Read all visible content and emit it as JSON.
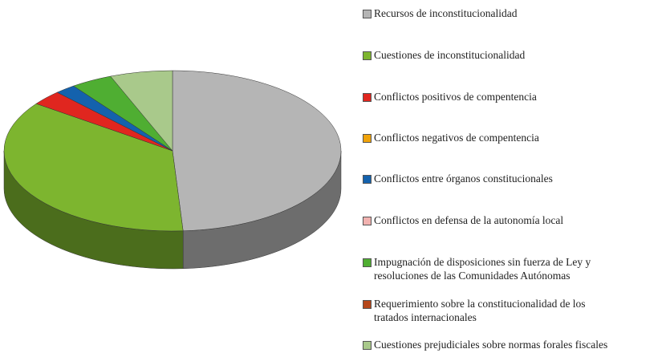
{
  "chart_data": {
    "type": "pie",
    "series": [
      {
        "name": "Recursos de inconstitucionalidad",
        "color": "#b5b5b5",
        "values": [
          49
        ]
      },
      {
        "name": "Cuestiones de inconstitucionalidad",
        "color": "#7db52f",
        "values": [
          36
        ]
      },
      {
        "name": "Conflictos positivos de compentencia",
        "color": "#e0261f",
        "values": [
          3
        ]
      },
      {
        "name": "Conflictos negativos de compentencia",
        "color": "#f0a30a",
        "values": [
          0
        ]
      },
      {
        "name": "Conflictos entre órganos constitucionales",
        "color": "#1462ad",
        "values": [
          2
        ]
      },
      {
        "name": "Conflictos en defensa de la autonomía local",
        "color": "#f2b2b0",
        "values": [
          0
        ]
      },
      {
        "name": "Impugnación de disposiciones sin fuerza de Ley y\nresoluciones de las Comunidades Autónomas",
        "color": "#4fae32",
        "values": [
          4
        ]
      },
      {
        "name": "Requerimiento sobre la constitucionalidad de los\ntratados internacionales",
        "color": "#b5471a",
        "values": [
          0
        ]
      },
      {
        "name": "Cuestiones prejudiciales sobre normas forales fiscales",
        "color": "#a9c98b",
        "values": [
          6
        ]
      }
    ]
  }
}
